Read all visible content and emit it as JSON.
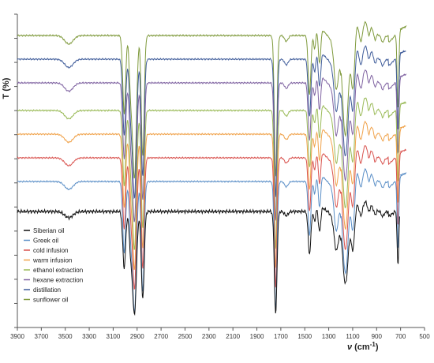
{
  "chart_data": {
    "type": "line",
    "ylabel": "T (%)",
    "xlabel_main": "ν",
    "xlabel_unit": "(cm",
    "xlabel_sup": "-1",
    "xlabel_close": ")",
    "xlim": [
      3900,
      500
    ],
    "x_reversed": true,
    "x_ticks": [
      "3900",
      "3700",
      "3500",
      "3300",
      "3100",
      "2900",
      "2700",
      "2500",
      "2300",
      "2100",
      "1900",
      "1700",
      "1500",
      "1300",
      "1100",
      "900",
      "700",
      "500"
    ],
    "grid": false,
    "legend_position": "bottom-left",
    "series": [
      {
        "name": "Siberian oil",
        "color": "#111111",
        "offset": 0
      },
      {
        "name": "Greek oil",
        "color": "#5b8fc7",
        "offset": 1
      },
      {
        "name": "cold infusion",
        "color": "#d9534f",
        "offset": 2
      },
      {
        "name": "warm infusion",
        "color": "#f0a24a",
        "offset": 3
      },
      {
        "name": "ethanol extraction",
        "color": "#9bbb59",
        "offset": 4
      },
      {
        "name": "hexane extraction",
        "color": "#8064a2",
        "offset": 5
      },
      {
        "name": "distillation",
        "color": "#3f5c9a",
        "offset": 6
      },
      {
        "name": "sunflower oil",
        "color": "#7f9a3c",
        "offset": 7
      }
    ]
  }
}
